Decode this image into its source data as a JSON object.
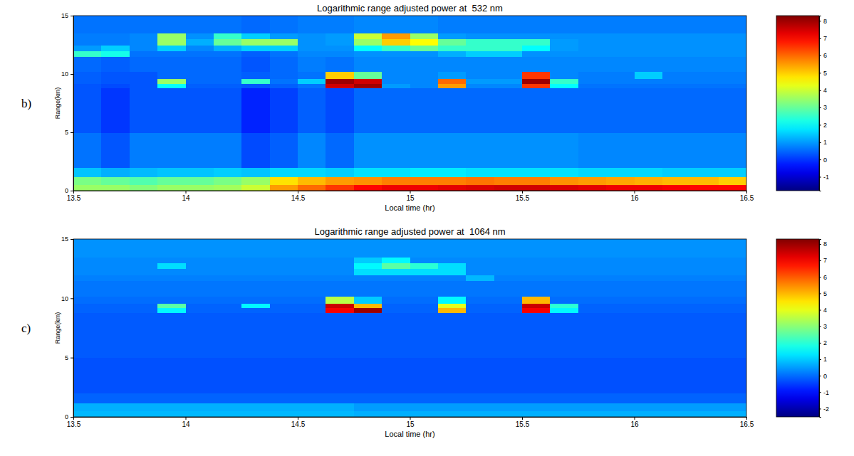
{
  "chart_data": [
    {
      "type": "heatmap",
      "panel_label": "b)",
      "title": "Logarithmic range adjusted power at  532 nm",
      "x_label": "Local time (hr)",
      "y_label": "Range(km)",
      "xlim": [
        13.5,
        16.5
      ],
      "xticks": [
        13.5,
        14,
        14.5,
        15,
        15.5,
        16,
        16.5
      ],
      "ylim": [
        0,
        15
      ],
      "yticks": [
        0,
        5,
        10,
        15
      ],
      "x_edges": [
        13.5,
        13.625,
        13.75,
        13.875,
        14,
        14.125,
        14.25,
        14.375,
        14.5,
        14.625,
        14.75,
        14.875,
        15,
        15.125,
        15.25,
        15.375,
        15.5,
        15.625,
        15.75,
        15.875,
        16,
        16.125,
        16.25,
        16.375,
        16.5
      ],
      "y_edges": [
        0,
        0.5,
        1.2,
        2,
        5,
        8.8,
        9.2,
        9.6,
        10.2,
        11.5,
        12,
        12.5,
        13,
        13.5,
        15
      ],
      "cells": [
        [
          3.5,
          3.5,
          3.3,
          3.5,
          3.5,
          3.6,
          4.0,
          5.5,
          6.0,
          6.5,
          7.0,
          7.2,
          7.2,
          7.3,
          7.4,
          7.5,
          7.5,
          7.4,
          7.3,
          7.2,
          7.2,
          7.1,
          7.0,
          7.0
        ],
        [
          3.2,
          3.0,
          2.8,
          3.0,
          3.0,
          3.2,
          3.5,
          4.8,
          5.2,
          5.5,
          5.6,
          5.8,
          5.8,
          5.8,
          5.9,
          5.8,
          5.8,
          5.6,
          5.5,
          5.4,
          5.3,
          5.2,
          5.2,
          5.0
        ],
        [
          1.4,
          1.2,
          1.3,
          1.4,
          1.4,
          1.5,
          1.4,
          1.6,
          1.6,
          1.5,
          1.7,
          1.7,
          1.8,
          1.8,
          1.7,
          1.7,
          1.7,
          1.7,
          1.6,
          1.6,
          1.6,
          1.5,
          1.5,
          1.5
        ],
        [
          0.6,
          0.3,
          0.7,
          0.7,
          0.7,
          0.7,
          0.2,
          0.4,
          0.8,
          0.5,
          0.9,
          0.9,
          0.9,
          0.9,
          0.9,
          0.9,
          0.9,
          0.9,
          0.8,
          0.8,
          0.8,
          0.8,
          0.8,
          0.8
        ],
        [
          0.3,
          0,
          0.3,
          0.3,
          0.3,
          0.3,
          -0.2,
          0.1,
          0.4,
          0.2,
          0.5,
          0.5,
          0.5,
          0.5,
          0.5,
          0.5,
          0.5,
          0.5,
          0.5,
          0.5,
          0.5,
          0.5,
          0.5,
          0.5
        ],
        [
          0.3,
          0.2,
          0.3,
          2.0,
          0.4,
          0.4,
          0.3,
          0.4,
          0.6,
          7.5,
          8.0,
          1.0,
          0.8,
          5.5,
          0.8,
          0.8,
          6.5,
          2.0,
          0.6,
          0.6,
          0.6,
          0.6,
          0.6,
          0.6
        ],
        [
          0.4,
          0.3,
          0.3,
          3.5,
          0.5,
          0.5,
          2.5,
          0.6,
          1.5,
          8.0,
          7.5,
          0.8,
          0.8,
          6.0,
          1.0,
          1.0,
          8.0,
          2.5,
          0.7,
          0.7,
          0.7,
          0.7,
          0.7,
          0.7
        ],
        [
          0.4,
          0.3,
          0.3,
          0.5,
          0.5,
          0.5,
          0.4,
          0.5,
          0.6,
          5.0,
          3.0,
          0.8,
          0.8,
          1.0,
          0.8,
          0.8,
          6.5,
          0.8,
          0.7,
          0.7,
          1.5,
          0.7,
          0.7,
          0.7
        ],
        [
          0.5,
          0.4,
          0.5,
          0.5,
          0.5,
          0.5,
          0.3,
          0.5,
          0.7,
          0.6,
          0.8,
          0.8,
          0.8,
          0.8,
          0.8,
          0.8,
          0.8,
          0.8,
          0.8,
          0.8,
          0.8,
          0.8,
          0.8,
          0.8
        ],
        [
          2.5,
          2.2,
          0.6,
          0.6,
          0.6,
          0.6,
          0.4,
          0.6,
          0.8,
          0.8,
          0.9,
          0.9,
          0.9,
          1.2,
          1.5,
          1.5,
          0.9,
          0.9,
          0.9,
          0.9,
          0.9,
          0.9,
          0.9,
          0.9
        ],
        [
          1.0,
          1.5,
          0.8,
          1.5,
          0.8,
          1.2,
          1.5,
          1.5,
          0.9,
          0.9,
          2.0,
          2.5,
          3.0,
          2.5,
          2.5,
          2.5,
          2.0,
          1.0,
          0.9,
          0.9,
          0.9,
          0.9,
          0.9,
          0.9
        ],
        [
          0.7,
          0.7,
          0.8,
          3.5,
          1.2,
          3.0,
          3.5,
          3.5,
          0.9,
          1.0,
          3.5,
          5.0,
          4.5,
          3.0,
          2.5,
          2.5,
          2.5,
          1.0,
          0.9,
          0.9,
          0.9,
          0.9,
          0.9,
          0.9
        ],
        [
          0.7,
          0.7,
          0.8,
          3.5,
          0.9,
          2.5,
          1.5,
          1.0,
          0.9,
          1.0,
          4.0,
          5.5,
          3.5,
          1.0,
          0.9,
          0.9,
          0.9,
          0.9,
          0.9,
          0.9,
          0.9,
          0.9,
          0.9,
          0.9
        ],
        [
          0.6,
          0.6,
          0.6,
          0.6,
          0.6,
          0.6,
          0.5,
          0.6,
          0.7,
          0.7,
          0.8,
          0.8,
          0.8,
          0.7,
          0.7,
          0.7,
          0.7,
          0.7,
          0.7,
          0.7,
          0.7,
          0.7,
          0.7,
          0.7
        ]
      ],
      "colorbar": {
        "range": [
          -1.8,
          8.3
        ],
        "ticks": [
          -1,
          0,
          1,
          2,
          3,
          4,
          5,
          6,
          7,
          8
        ]
      }
    },
    {
      "type": "heatmap",
      "panel_label": "c)",
      "title": "Logarithmic range adjusted power at  1064 nm",
      "x_label": "Local time (hr)",
      "y_label": "Range(km)",
      "xlim": [
        13.5,
        16.5
      ],
      "xticks": [
        13.5,
        14,
        14.5,
        15,
        15.5,
        16,
        16.5
      ],
      "ylim": [
        0,
        15
      ],
      "yticks": [
        0,
        5,
        10,
        15
      ],
      "x_edges": [
        13.5,
        13.625,
        13.75,
        13.875,
        14,
        14.125,
        14.25,
        14.375,
        14.5,
        14.625,
        14.75,
        14.875,
        15,
        15.125,
        15.25,
        15.375,
        15.5,
        15.625,
        15.75,
        15.875,
        16,
        16.125,
        16.25,
        16.375,
        16.5
      ],
      "y_edges": [
        0,
        0.5,
        1.2,
        2,
        5,
        8.8,
        9.2,
        9.6,
        10.2,
        11.5,
        12,
        12.5,
        13,
        13.5,
        15
      ],
      "cells": [
        [
          0.8,
          0.8,
          0.8,
          0.8,
          0.8,
          0.8,
          0.8,
          0.8,
          0.8,
          0.8,
          0.7,
          0.7,
          0.7,
          0.7,
          0.7,
          0.7,
          0.7,
          0.7,
          0.7,
          0.7,
          0.7,
          0.7,
          0.7,
          0.7
        ],
        [
          0.7,
          0.7,
          0.7,
          0.7,
          0.7,
          0.7,
          0.7,
          0.7,
          0.7,
          0.7,
          0.5,
          0.5,
          0.5,
          0.5,
          0.5,
          0.5,
          0.5,
          0.5,
          0.5,
          0.5,
          0.5,
          0.5,
          0.5,
          0.5
        ],
        [
          -0.1,
          -0.1,
          -0.1,
          -0.1,
          -0.1,
          -0.1,
          -0.1,
          -0.1,
          -0.1,
          -0.1,
          -0.1,
          -0.1,
          -0.1,
          -0.1,
          -0.1,
          -0.1,
          -0.1,
          -0.1,
          -0.1,
          -0.1,
          -0.1,
          -0.1,
          -0.1,
          -0.1
        ],
        [
          -0.3,
          -0.3,
          -0.3,
          -0.3,
          -0.3,
          -0.3,
          -0.3,
          -0.3,
          -0.3,
          -0.3,
          -0.3,
          -0.3,
          -0.3,
          -0.3,
          -0.3,
          -0.3,
          -0.3,
          -0.3,
          -0.3,
          -0.3,
          -0.3,
          -0.3,
          -0.3,
          -0.3
        ],
        [
          -0.2,
          -0.2,
          -0.2,
          -0.2,
          -0.2,
          -0.2,
          -0.2,
          -0.2,
          -0.2,
          -0.2,
          -0.2,
          -0.2,
          -0.2,
          -0.2,
          -0.2,
          -0.2,
          -0.2,
          -0.2,
          -0.2,
          -0.2,
          -0.2,
          -0.2,
          -0.2,
          -0.2
        ],
        [
          -0.1,
          -0.1,
          -0.1,
          1.5,
          -0.1,
          -0.1,
          -0.1,
          -0.1,
          -0.1,
          7.0,
          8.0,
          -0.1,
          -0.1,
          5.0,
          -0.1,
          -0.1,
          7.0,
          1.5,
          -0.1,
          -0.1,
          -0.1,
          -0.1,
          -0.1,
          -0.1
        ],
        [
          -0.1,
          -0.1,
          -0.1,
          2.5,
          -0.1,
          -0.1,
          1.5,
          -0.1,
          -0.1,
          7.5,
          5.0,
          -0.1,
          -0.1,
          4.0,
          -0.1,
          -0.1,
          7.5,
          2.0,
          -0.1,
          -0.1,
          -0.1,
          -0.1,
          -0.1,
          -0.1
        ],
        [
          0,
          0,
          0,
          0,
          0,
          0,
          0,
          0,
          0,
          3.5,
          1.0,
          0,
          0,
          1.5,
          0,
          0,
          5.0,
          0,
          0,
          0,
          0,
          0,
          0,
          0
        ],
        [
          0.1,
          0.1,
          0.1,
          0.1,
          0.1,
          0.1,
          0.1,
          0.1,
          0.1,
          0.1,
          0.1,
          0.1,
          0.1,
          0.1,
          0.1,
          0.1,
          0.1,
          0.1,
          0.1,
          0.1,
          0.1,
          0.1,
          0.1,
          0.1
        ],
        [
          0.2,
          0.2,
          0.2,
          0.2,
          0.2,
          0.2,
          0.2,
          0.2,
          0.2,
          0.2,
          0.2,
          0.2,
          0.2,
          0.2,
          0.8,
          0.2,
          0.2,
          0.2,
          0.2,
          0.2,
          0.2,
          0.2,
          0.2,
          0.2
        ],
        [
          0.3,
          0.3,
          0.3,
          0.3,
          0.3,
          0.3,
          0.3,
          0.3,
          0.3,
          0.3,
          1.2,
          1.2,
          1.2,
          1.2,
          0.3,
          0.3,
          0.3,
          0.3,
          0.3,
          0.3,
          0.3,
          0.3,
          0.3,
          0.3
        ],
        [
          0.3,
          0.3,
          0.3,
          1.2,
          0.3,
          0.3,
          0.3,
          0.3,
          0.3,
          0.3,
          1.5,
          2.5,
          2.0,
          1.2,
          0.3,
          0.3,
          0.3,
          0.3,
          0.3,
          0.3,
          0.3,
          0.3,
          0.3,
          0.3
        ],
        [
          0.3,
          0.3,
          0.3,
          0.3,
          0.3,
          0.3,
          0.3,
          0.3,
          0.3,
          0.3,
          1.0,
          1.5,
          0.3,
          0.3,
          0.3,
          0.3,
          0.3,
          0.3,
          0.3,
          0.3,
          0.3,
          0.3,
          0.3,
          0.3
        ],
        [
          0.4,
          0.4,
          0.4,
          0.4,
          0.4,
          0.4,
          0.4,
          0.4,
          0.4,
          0.4,
          0.4,
          0.4,
          0.4,
          0.4,
          0.4,
          0.4,
          0.4,
          0.4,
          0.4,
          0.4,
          0.4,
          0.4,
          0.4,
          0.4
        ]
      ],
      "colorbar": {
        "range": [
          -2.5,
          8.3
        ],
        "ticks": [
          -2,
          -1,
          0,
          1,
          2,
          3,
          4,
          5,
          6,
          7,
          8
        ]
      }
    }
  ]
}
